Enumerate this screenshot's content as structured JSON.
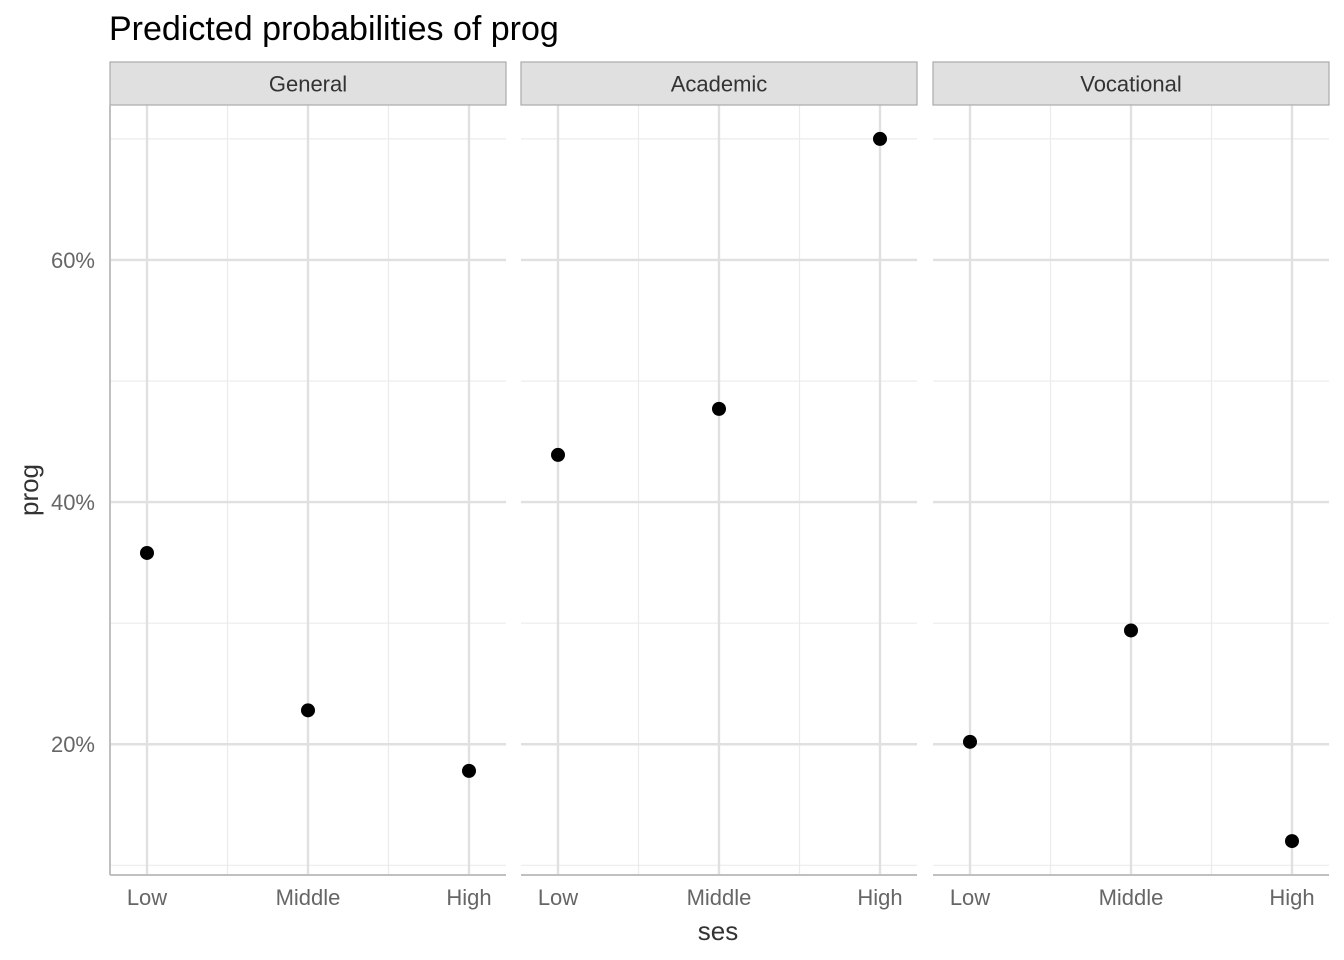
{
  "chart_data": {
    "type": "scatter",
    "title": "Predicted probabilities of prog",
    "xlabel": "ses",
    "ylabel": "prog",
    "categories": [
      "Low",
      "Middle",
      "High"
    ],
    "y_ticks": [
      20,
      40,
      60
    ],
    "y_tick_labels": [
      "20%",
      "40%",
      "60%"
    ],
    "ylim": [
      9.2,
      72.8
    ],
    "grid": true,
    "panels": [
      {
        "name": "General",
        "values": [
          35.8,
          22.8,
          17.8
        ]
      },
      {
        "name": "Academic",
        "values": [
          43.9,
          47.7,
          70.0
        ]
      },
      {
        "name": "Vocational",
        "values": [
          20.2,
          29.4,
          12.0
        ]
      }
    ],
    "colors": {
      "point": "#000000",
      "grid_major": "#e0e0e0",
      "grid_minor": "#ebebeb",
      "strip_fill": "#e0e0e0",
      "strip_border": "#aaaaaa",
      "axis_line": "#c0c0c0"
    }
  }
}
